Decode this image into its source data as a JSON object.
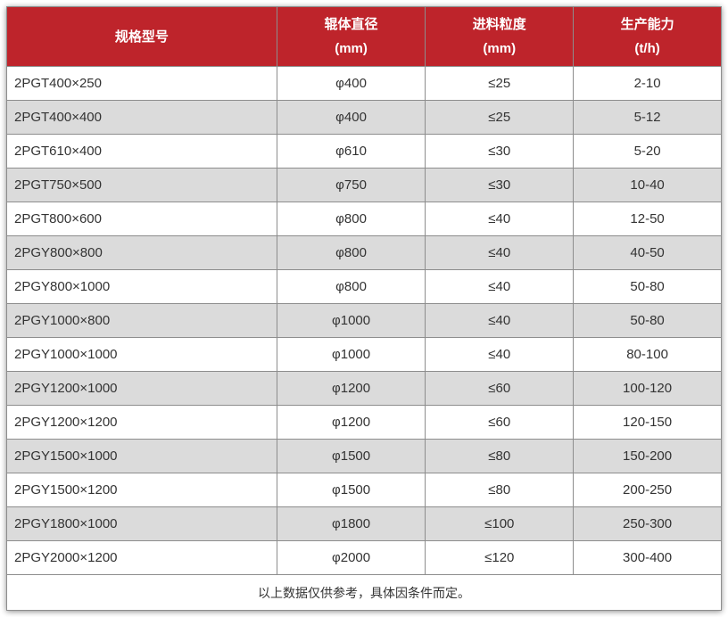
{
  "chart_data": {
    "type": "table",
    "columns": [
      {
        "title": "规格型号",
        "unit": ""
      },
      {
        "title": "辊体直径",
        "unit": "(mm)"
      },
      {
        "title": "进料粒度",
        "unit": "(mm)"
      },
      {
        "title": "生产能力",
        "unit": "(t/h)"
      }
    ],
    "rows": [
      [
        "2PGT400×250",
        "φ400",
        "≤25",
        "2-10"
      ],
      [
        "2PGT400×400",
        "φ400",
        "≤25",
        "5-12"
      ],
      [
        "2PGT610×400",
        "φ610",
        "≤30",
        "5-20"
      ],
      [
        "2PGT750×500",
        "φ750",
        "≤30",
        "10-40"
      ],
      [
        "2PGT800×600",
        "φ800",
        "≤40",
        "12-50"
      ],
      [
        "2PGY800×800",
        "φ800",
        "≤40",
        "40-50"
      ],
      [
        "2PGY800×1000",
        "φ800",
        "≤40",
        "50-80"
      ],
      [
        "2PGY1000×800",
        "φ1000",
        "≤40",
        "50-80"
      ],
      [
        "2PGY1000×1000",
        "φ1000",
        "≤40",
        "80-100"
      ],
      [
        "2PGY1200×1000",
        "φ1200",
        "≤60",
        "100-120"
      ],
      [
        "2PGY1200×1200",
        "φ1200",
        "≤60",
        "120-150"
      ],
      [
        "2PGY1500×1000",
        "φ1500",
        "≤80",
        "150-200"
      ],
      [
        "2PGY1500×1200",
        "φ1500",
        "≤80",
        "200-250"
      ],
      [
        "2PGY1800×1000",
        "φ1800",
        "≤100",
        "250-300"
      ],
      [
        "2PGY2000×1200",
        "φ2000",
        "≤120",
        "300-400"
      ]
    ],
    "footnote": "以上数据仅供参考，具体因条件而定。"
  },
  "colors": {
    "header_bg": "#BE242B",
    "header_text": "#FFFFFF",
    "row_bg": "#FFFFFF",
    "row_alt_bg": "#DBDBDB",
    "border": "#8D8D8D",
    "body_text": "#333333"
  }
}
